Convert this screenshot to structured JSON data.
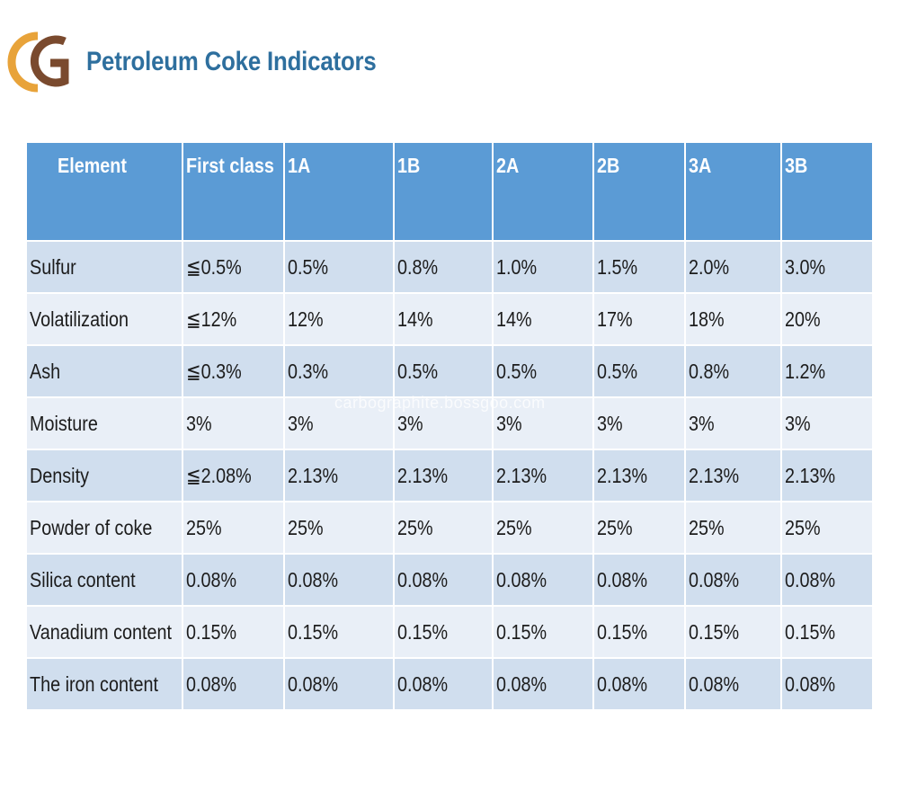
{
  "logo": {
    "text": "CG",
    "colors": {
      "c": "#e8a33a",
      "g": "#7a4a2e"
    }
  },
  "title": "Petroleum Coke Indicators",
  "table": {
    "headers": [
      "Element",
      "First class",
      "1A",
      "1B",
      "2A",
      "2B",
      "3A",
      "3B"
    ],
    "rows": [
      [
        "Sulfur",
        "≦0.5%",
        "0.5%",
        "0.8%",
        "1.0%",
        "1.5%",
        "2.0%",
        "3.0%"
      ],
      [
        "Volatilization",
        "≦12%",
        "12%",
        "14%",
        "14%",
        "17%",
        "18%",
        "20%"
      ],
      [
        "Ash",
        "≦0.3%",
        "0.3%",
        "0.5%",
        "0.5%",
        "0.5%",
        "0.8%",
        "1.2%"
      ],
      [
        "Moisture",
        "3%",
        "3%",
        "3%",
        "3%",
        "3%",
        "3%",
        "3%"
      ],
      [
        "Density",
        "≦2.08%",
        "2.13%",
        " 2.13%",
        "2.13%",
        "2.13%",
        "2.13%",
        "2.13%"
      ],
      [
        "Powder of coke",
        "25%",
        "25%",
        "25%",
        "25%",
        "25%",
        "25%",
        "25%"
      ],
      [
        "Silica content",
        "0.08%",
        "0.08%",
        "0.08%",
        "0.08%",
        "0.08%",
        "0.08%",
        "0.08%"
      ],
      [
        "Vanadium content",
        "0.15%",
        "0.15%",
        "0.15%",
        "0.15%",
        "0.15%",
        "0.15%",
        "0.15%"
      ],
      [
        "The iron content",
        "0.08%",
        "0.08%",
        "0.08%",
        "0.08%",
        "0.08%",
        "0.08%",
        "0.08%"
      ]
    ]
  },
  "watermark": "carbographite.bossgoo.com",
  "colors": {
    "header_bg": "#5b9bd5",
    "row_dark": "#d0deee",
    "row_light": "#e9eff7",
    "title": "#2e6f9e"
  }
}
